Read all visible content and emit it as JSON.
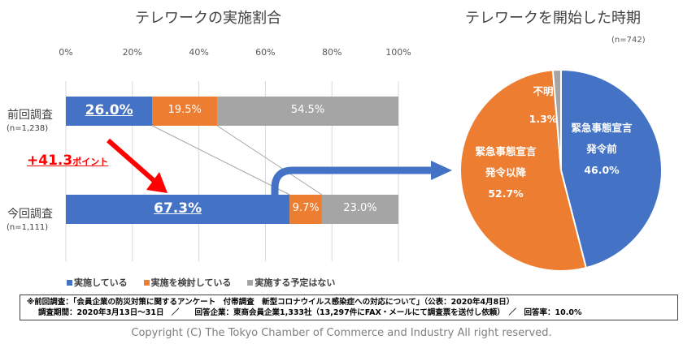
{
  "chart_data": [
    {
      "type": "bar",
      "orientation": "horizontal-stacked-100",
      "title": "テレワークの実施割合",
      "categories": [
        {
          "label": "前回調査",
          "n_label": "(n=1,238)"
        },
        {
          "label": "今回調査",
          "n_label": "(n=1,111)"
        }
      ],
      "series": [
        {
          "name": "実施している",
          "color": "#4472c4",
          "values": [
            26.0,
            67.3
          ],
          "labels": [
            "26.0%",
            "67.3%"
          ]
        },
        {
          "name": "実施を検討している",
          "color": "#ed7d31",
          "values": [
            19.5,
            9.7
          ],
          "labels": [
            "19.5%",
            "9.7%"
          ]
        },
        {
          "name": "実施する予定はない",
          "color": "#a5a5a5",
          "values": [
            54.5,
            23.0
          ],
          "labels": [
            "54.5%",
            "23.0%"
          ]
        }
      ],
      "xlim": [
        0,
        100
      ],
      "xticks": [
        "0%",
        "20%",
        "40%",
        "60%",
        "80%",
        "100%"
      ],
      "grid": true,
      "legend_position": "bottom",
      "annotation": {
        "value": "+41.3",
        "unit": "ポイント",
        "color": "#ff0000"
      }
    },
    {
      "type": "pie",
      "title": "テレワークを開始した時期",
      "n_label": "(n=742)",
      "slices": [
        {
          "name": "緊急事態宣言発令前",
          "lines": [
            "緊急事態宣言",
            "発令前"
          ],
          "value": 46.0,
          "label": "46.0%",
          "color": "#4472c4"
        },
        {
          "name": "緊急事態宣言発令以降",
          "lines": [
            "緊急事態宣言",
            "発令以降"
          ],
          "value": 52.7,
          "label": "52.7%",
          "color": "#ed7d31"
        },
        {
          "name": "不明",
          "lines": [
            "不明"
          ],
          "value": 1.3,
          "label": "1.3%",
          "color": "#a5a5a5"
        }
      ]
    }
  ],
  "footnote": {
    "line1": "※前回調査：「会員企業の防災対策に関するアンケート　付帯調査　新型コロナウイルス感染症への対応について」（公表：2020年4月8日）",
    "line2": "調査期間：2020年3月13日～31日　／　　回答企業：東商会員企業1,333社（13,297件にFAX・メールにて調査票を送付し依頼）　／　回答率：10.0%"
  },
  "copyright": "Copyright (C) The Tokyo Chamber of Commerce and Industry All right reserved."
}
